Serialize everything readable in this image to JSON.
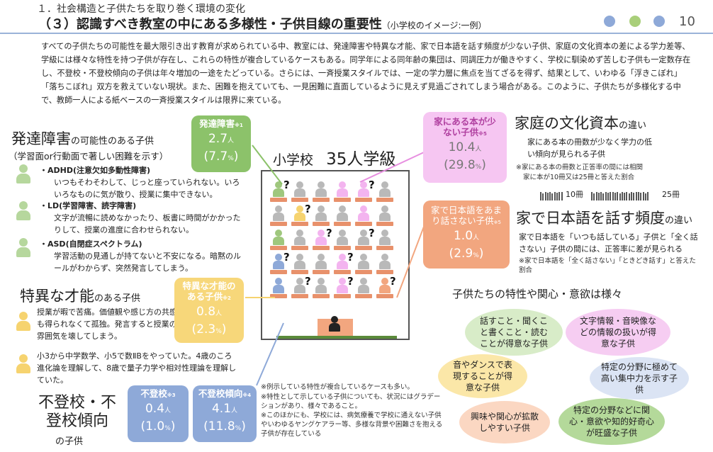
{
  "header": {
    "subtitle": "１．社会構造と子供たちを取り巻く環境の変化",
    "title": "（３）認識すべき教室の中にある多様性・子供目線の重要性",
    "title_note": "（小学校のイメージ:一例）",
    "page_number": "10",
    "dot_colors": [
      "#8ea9d8",
      "#a9cf7a",
      "#8ea9d8"
    ]
  },
  "intro": "すべての子供たちの可能性を最大限引き出す教育が求められている中、教室には、発達障害や特異な才能、家で日本語を話す頻度が少ない子供、家庭の文化資本の差による学力差等、学級には様々な特性を持つ子供が存在し、これらの特性が複合しているケースもある。同学年による同年齢の集団は、同調圧力が働きやすく、学校に馴染めず苦しむ子供も一定数存在し、不登校・不登校傾向の子供は年々増加の一途をたどっている。さらには、一斉授業スタイルでは、一定の学力層に焦点を当てざるを得ず、結果として、いわゆる「浮きこぼれ」「落ちこぼれ」双方を救えていない現状。また、困難を抱えていても、一見困難に直面しているように見えず見過ごされてしまう場合がある。このように、子供たちが多様化する中で、教師一人による紙ベースの一斉授業スタイルは限界に来ている。",
  "hattatsu": {
    "title_big": "発達障害",
    "title_small": "の可能性のある子供",
    "subtitle": "（学習面or行動面で著しい困難を示す）",
    "items": [
      {
        "head": "・ADHD(注意欠如多動性障害)",
        "text": "いつもそわそわして、じっと座っていられない。いろいろなものに気が散り、授業に集中できない。"
      },
      {
        "head": "・LD(学習障害、読字障害)",
        "text": "文字が流暢に読めなかったり、板書に時間がかかったりして、授業の進度に合わせられない。"
      },
      {
        "head": "・ASD(自閉症スペクトラム)",
        "text": "学習活動の見通しが持てないと不安になる。暗黙のルールがわからず、突然発言してしまう。"
      }
    ],
    "stat": {
      "label": "発達障害",
      "note": "※1",
      "count": "2.7",
      "unit": "人",
      "pct": "7.7",
      "pct_unit": "%",
      "color": "#8cc26a"
    }
  },
  "tokui": {
    "title_big": "特異な才能",
    "title_small": "のある子供",
    "text1": "授業が暇で苦痛。価値観や感じ方の共感も得られなくて孤独。発言すると授業の雰囲気を壊してしまう。",
    "text2": "小3から中学数学、小5で数ⅡBをやっていた。4歳のころ進化論を理解して、8歳で量子力学や相対性理論を理解していた。",
    "stat": {
      "label": "特異な才能のある子供",
      "note": "※2",
      "count": "0.8",
      "unit": "人",
      "pct": "2.3",
      "pct_unit": "%",
      "color": "#f7d77a"
    }
  },
  "futoko": {
    "title": "不登校・不登校傾向",
    "title_small": "の子供",
    "stats": [
      {
        "label": "不登校",
        "note": "※3",
        "count": "0.4",
        "unit": "人",
        "pct": "1.0",
        "pct_unit": "%",
        "color": "#8ea9d8"
      },
      {
        "label": "不登校傾向",
        "note": "※4",
        "count": "4.1",
        "unit": "人",
        "pct": "11.8",
        "pct_unit": "%",
        "color": "#8ea9d8"
      }
    ]
  },
  "classroom": {
    "title_a": "小学校",
    "title_b": "35人学級",
    "question_mark": "?"
  },
  "bunka": {
    "title_big": "家庭の文化資本",
    "title_small": "の違い",
    "text": "家にある本の冊数が少なく学力の低い傾向が見られる子供",
    "note1": "※家にある本の冊数と正答率の間には相関",
    "note2": "家に本が10冊又は25冊と答えた割合",
    "bar_label_a": "10冊",
    "bar_label_b": "25冊",
    "stat": {
      "label": "家にある本が少ない子供",
      "note": "※5",
      "count": "10.4",
      "unit": "人",
      "pct": "29.8",
      "pct_unit": "%",
      "color": "#f3b4ef"
    }
  },
  "nihongo": {
    "title_big": "家で日本語を話す頻度",
    "title_small": "の違い",
    "text": "家で日本語を「いつも話している」子供と「全く話さない」子供の間には、正答率に差が見られる",
    "note": "※家で日本語を「全く話さない」「ときどき話す」と答えた割合",
    "stat": {
      "label": "家で日本語をあまり話さない子供",
      "note": "※5",
      "count": "1.0",
      "unit": "人",
      "pct": "2.9",
      "pct_unit": "%",
      "color": "#f2a67f"
    }
  },
  "tokusei": {
    "title": "子供たちの特性や関心・意欲は様々",
    "bubbles": [
      {
        "text": "話すこと・聞くこと書くこと・読むことが得意な子供",
        "color": "#d8ecc8"
      },
      {
        "text": "文字情報・音映像などの情報の扱いが得意な子供",
        "color": "#f6cdf2"
      },
      {
        "text": "音やダンスで表現することが得意な子供",
        "color": "#fbe7a8"
      },
      {
        "text": "特定の分野に極めて高い集中力を示す子供",
        "color": "#dbe4f4"
      },
      {
        "text": "興味や関心が拡散しやすい子供",
        "color": "#fbd7c2"
      },
      {
        "text": "特定の分野などに関心・意欲や知的好奇心が旺盛な子供",
        "color": "#b4d99a"
      }
    ]
  },
  "notes": [
    "※例示している特性が複合しているケースも多い。",
    "※特性として示している子供についても、状況にはグラデーションがあり、様々であること。",
    "※このほかにも、学校には、病気療養で学校に通えない子供やいわゆるヤングケアラー等、多様な背景や困難さを抱える子供が存在している"
  ]
}
